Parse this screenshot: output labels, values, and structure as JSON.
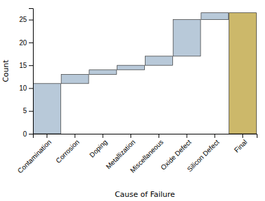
{
  "chart_data": {
    "type": "waterfall",
    "categories": [
      "Contamination",
      "Corrosion",
      "Doping",
      "Metallization",
      "Miscellaneous",
      "Oxide Defect",
      "Silicon Defect",
      "Final"
    ],
    "values": [
      11,
      2,
      1,
      1,
      2,
      8,
      1.5,
      26.5
    ],
    "colors": [
      "#b8c9d9",
      "#b8c9d9",
      "#b8c9d9",
      "#b8c9d9",
      "#b8c9d9",
      "#b8c9d9",
      "#b8c9d9",
      "#ccb86a"
    ],
    "xlabel": "Cause of Failure",
    "ylabel": "Count",
    "ylim": [
      0,
      27.5
    ],
    "yticks": [
      0,
      5,
      10,
      15,
      20,
      25
    ],
    "grid": false
  }
}
